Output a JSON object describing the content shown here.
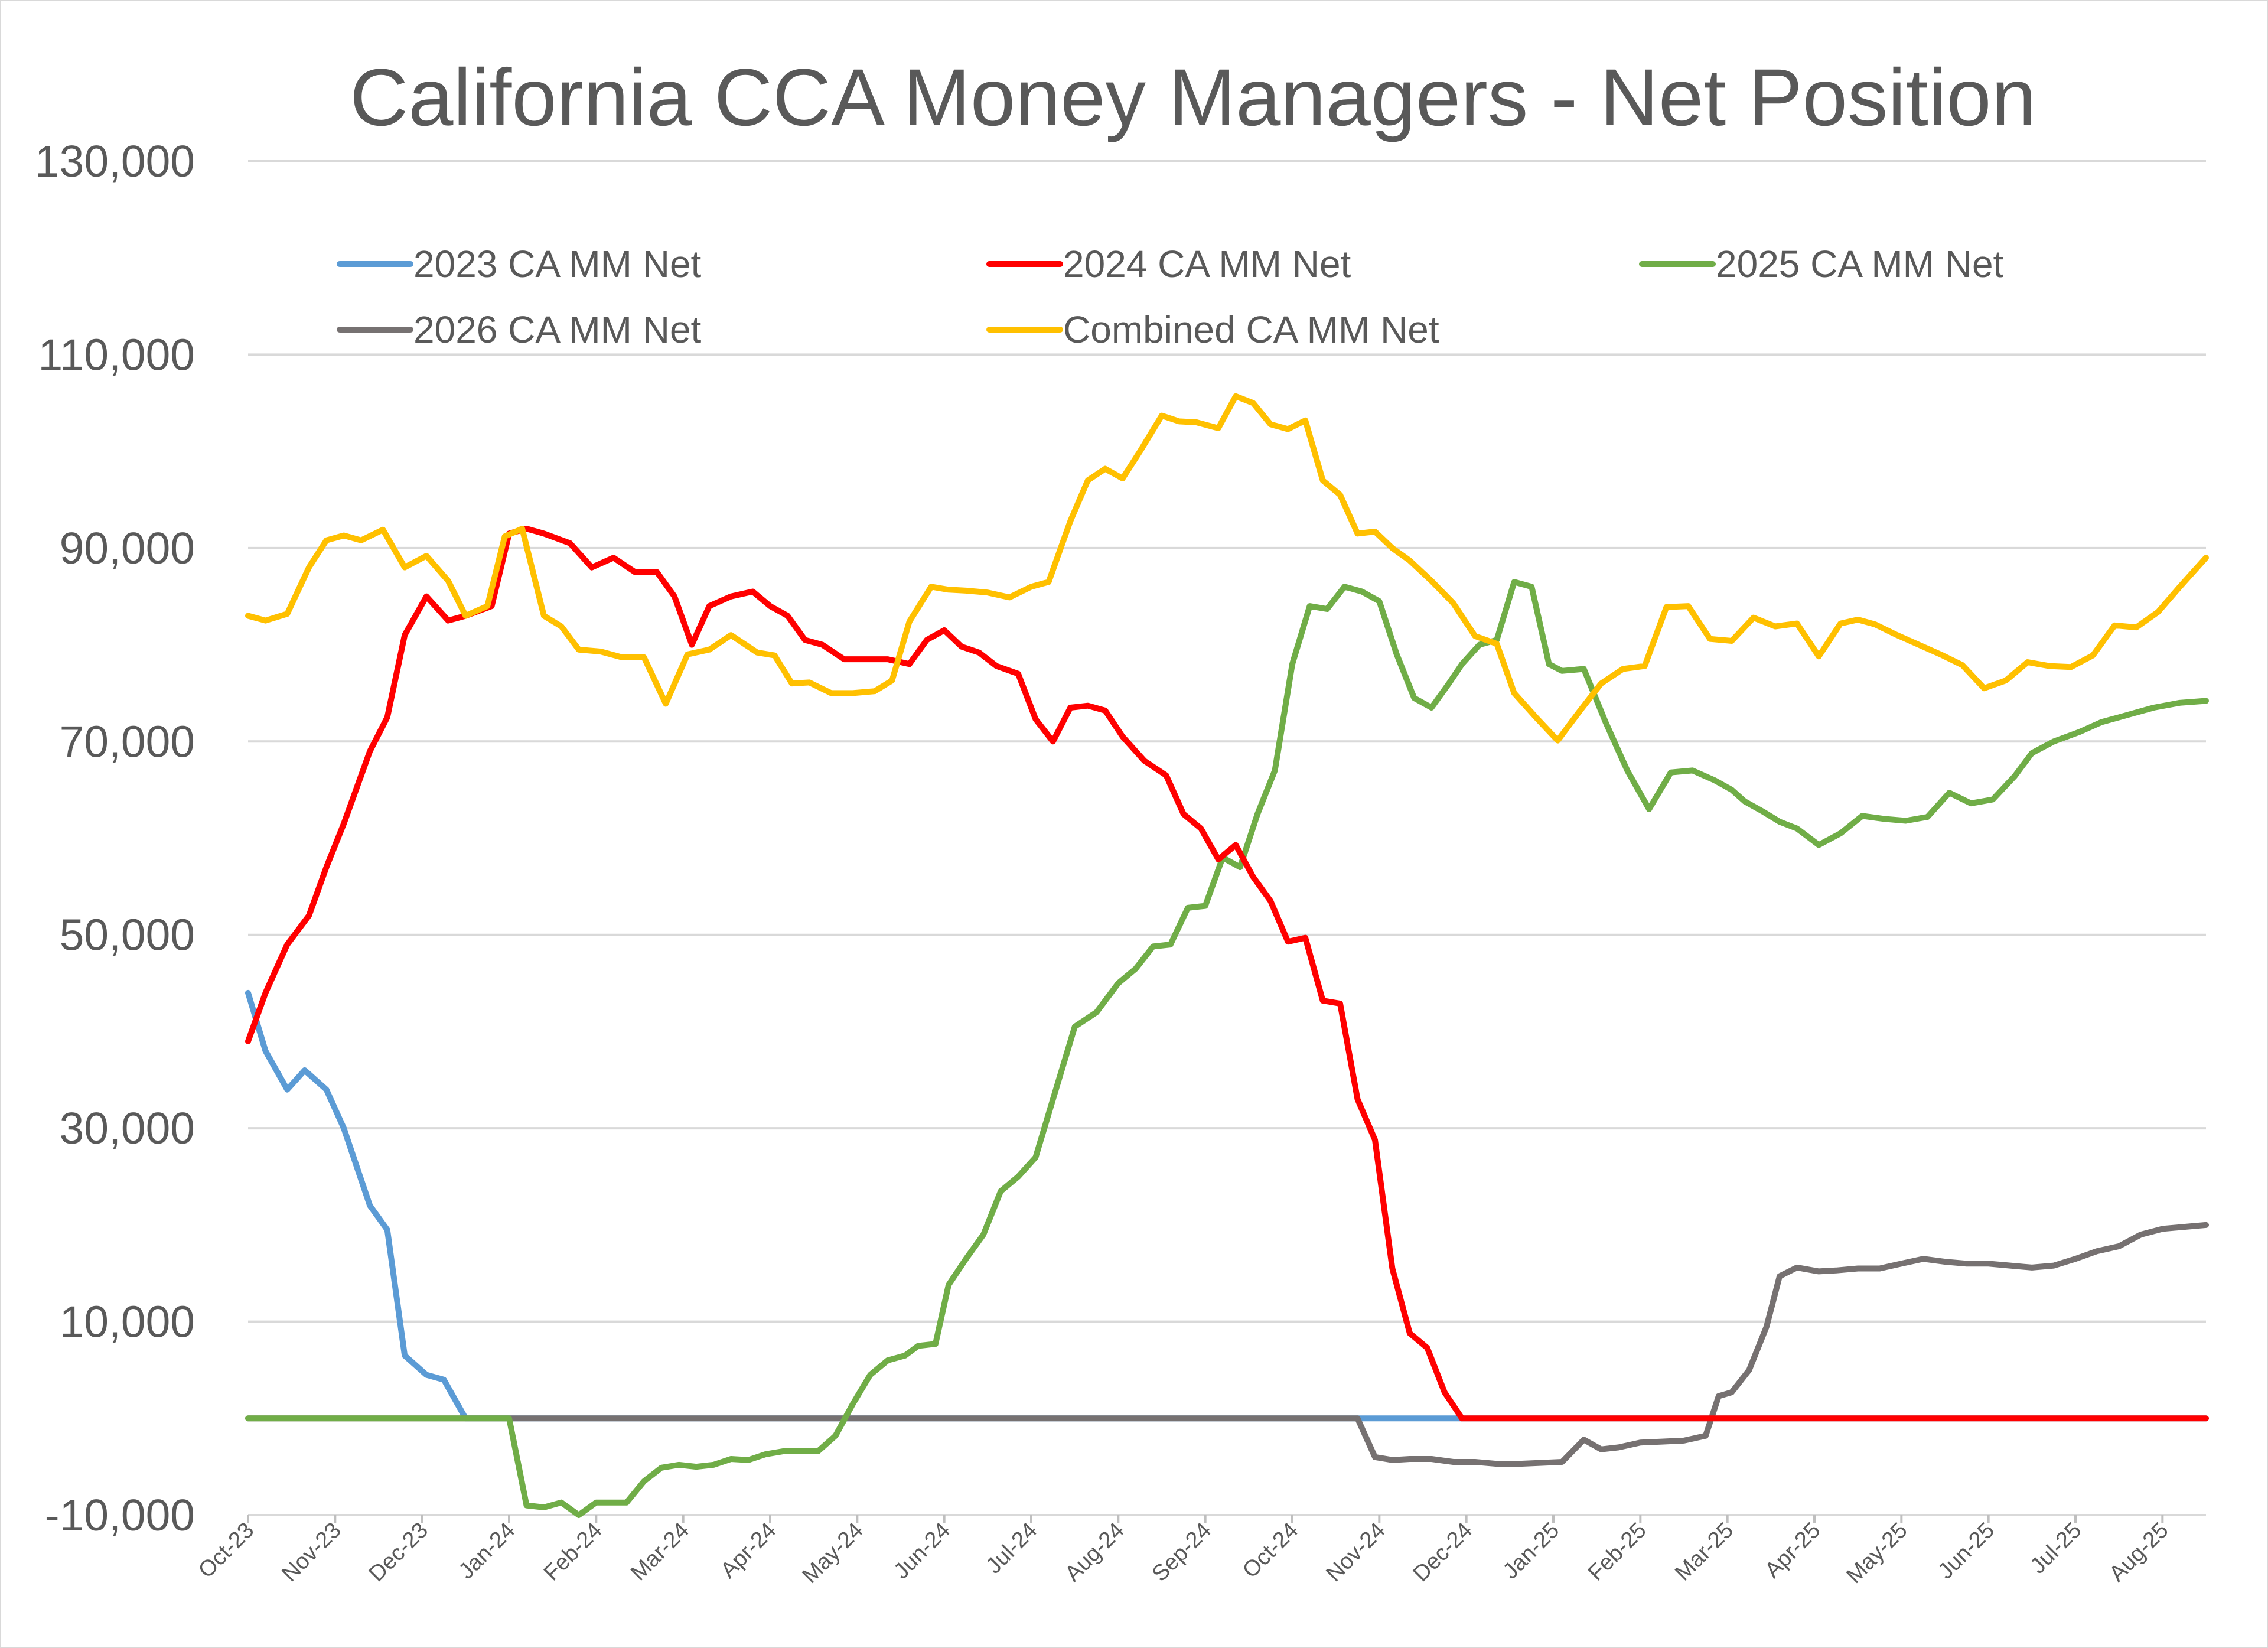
{
  "chart_data": {
    "type": "line",
    "title": "California CCA Money Managers - Net Position",
    "xlabel": "",
    "ylabel": "",
    "ylim": [
      -10000,
      130000
    ],
    "yticks": [
      -10000,
      10000,
      30000,
      50000,
      70000,
      90000,
      110000,
      130000
    ],
    "ytick_labels": [
      "-10,000",
      "10,000",
      "30,000",
      "50,000",
      "70,000",
      "90,000",
      "110,000",
      "130,000"
    ],
    "x_labels": [
      "Oct-23",
      "Nov-23",
      "Dec-23",
      "Jan-24",
      "Feb-24",
      "Mar-24",
      "Apr-24",
      "May-24",
      "Jun-24",
      "Jul-24",
      "Aug-24",
      "Sep-24",
      "Oct-24",
      "Nov-24",
      "Dec-24",
      "Jan-25",
      "Feb-25",
      "Mar-25",
      "Apr-25",
      "May-25",
      "Jun-25",
      "Jul-25",
      "Aug-25"
    ],
    "x_range": [
      0,
      22.5
    ],
    "grid": true,
    "legend_position": "top",
    "series": [
      {
        "name": "2023 CA MM Net",
        "color": "#5b9bd5",
        "x": [
          0,
          0.2,
          0.45,
          0.65,
          0.9,
          1.1,
          1.4,
          1.6,
          1.8,
          2.05,
          2.25,
          2.5,
          3,
          4,
          5,
          6,
          7,
          8,
          9,
          10,
          11,
          12,
          13,
          14,
          14.7,
          15,
          16,
          17,
          18,
          19,
          20,
          21,
          22,
          22.5
        ],
        "y": [
          44000,
          38000,
          34000,
          36000,
          34000,
          30000,
          22000,
          19500,
          6500,
          4500,
          4000,
          0,
          0,
          0,
          0,
          0,
          0,
          0,
          0,
          0,
          0,
          0,
          0,
          0,
          0,
          0,
          0,
          0,
          0,
          0,
          0,
          0,
          0,
          0
        ]
      },
      {
        "name": "2024 CA MM Net",
        "color": "#ff0000",
        "x": [
          0,
          0.2,
          0.45,
          0.7,
          0.9,
          1.1,
          1.4,
          1.6,
          1.8,
          2.05,
          2.3,
          2.5,
          2.8,
          3,
          3.2,
          3.4,
          3.7,
          3.95,
          4.2,
          4.45,
          4.7,
          4.9,
          5.1,
          5.3,
          5.55,
          5.8,
          6,
          6.2,
          6.4,
          6.6,
          6.85,
          7.1,
          7.35,
          7.6,
          7.8,
          8,
          8.2,
          8.4,
          8.6,
          8.85,
          9.05,
          9.25,
          9.45,
          9.65,
          9.85,
          10.05,
          10.3,
          10.55,
          10.75,
          10.95,
          11.15,
          11.35,
          11.55,
          11.75,
          11.95,
          12.15,
          12.35,
          12.55,
          12.75,
          12.95,
          13.15,
          13.35,
          13.55,
          13.75,
          13.95,
          14.15,
          14.35,
          14.55,
          14.75,
          14.85,
          15.2,
          16,
          17,
          18,
          19,
          20,
          21,
          22,
          22.5
        ],
        "y": [
          39000,
          44000,
          49000,
          52000,
          57000,
          61500,
          69000,
          72500,
          81000,
          85000,
          82500,
          83000,
          84000,
          91500,
          92000,
          91500,
          90500,
          88000,
          89000,
          87500,
          87500,
          85000,
          80000,
          84000,
          85000,
          85500,
          84000,
          83000,
          80500,
          80000,
          78500,
          78500,
          78500,
          78000,
          80500,
          81500,
          79800,
          79200,
          77800,
          77000,
          72300,
          70000,
          73500,
          73700,
          73200,
          70500,
          68000,
          66500,
          62500,
          61000,
          57800,
          59300,
          56000,
          53500,
          49300,
          49700,
          43200,
          42900,
          33000,
          28800,
          15500,
          8800,
          7300,
          2700,
          0,
          0,
          0,
          0,
          0,
          0,
          0,
          0,
          0,
          0,
          0,
          0,
          0,
          0,
          0
        ]
      },
      {
        "name": "2025 CA MM Net",
        "color": "#70ad47",
        "x": [
          0,
          1,
          2,
          3,
          3.2,
          3.4,
          3.6,
          3.8,
          4.0,
          4.15,
          4.35,
          4.55,
          4.75,
          4.95,
          5.15,
          5.35,
          5.55,
          5.75,
          5.95,
          6.15,
          6.35,
          6.55,
          6.75,
          6.95,
          7.15,
          7.35,
          7.55,
          7.7,
          7.9,
          8.05,
          8.25,
          8.45,
          8.65,
          8.85,
          9.05,
          9.25,
          9.5,
          9.75,
          10,
          10.2,
          10.4,
          10.6,
          10.8,
          11,
          11.2,
          11.4,
          11.6,
          11.8,
          12,
          12.2,
          12.4,
          12.6,
          12.8,
          13,
          13.2,
          13.4,
          13.6,
          13.8,
          13.95,
          14.15,
          14.35,
          14.55,
          14.75,
          14.95,
          15.1,
          15.35,
          15.6,
          15.85,
          16.1,
          16.35,
          16.6,
          16.85,
          17.05,
          17.2,
          17.4,
          17.6,
          17.8,
          18.05,
          18.3,
          18.55,
          18.8,
          19.05,
          19.3,
          19.55,
          19.8,
          20.05,
          20.3,
          20.5,
          20.75,
          21.05,
          21.3,
          21.5,
          21.7,
          21.9,
          22.2,
          22.5
        ],
        "y": [
          0,
          0,
          0,
          0,
          -9000,
          -9200,
          -8700,
          -10000,
          -8700,
          -8700,
          -8700,
          -6500,
          -5100,
          -4800,
          -5000,
          -4800,
          -4200,
          -4300,
          -3700,
          -3400,
          -3400,
          -3400,
          -1800,
          1500,
          4500,
          6000,
          6500,
          7500,
          7700,
          13800,
          16500,
          19000,
          23500,
          25000,
          27000,
          33000,
          40500,
          42000,
          45000,
          46500,
          48800,
          49000,
          52800,
          53000,
          58000,
          57000,
          62500,
          67000,
          78000,
          84000,
          83700,
          86000,
          85500,
          84500,
          79000,
          74500,
          73500,
          76000,
          78000,
          80000,
          80500,
          86500,
          86000,
          78000,
          77300,
          77500,
          72000,
          67000,
          63000,
          66800,
          67000,
          66000,
          65000,
          63800,
          62800,
          61700,
          61000,
          59300,
          60500,
          62300,
          62000,
          61800,
          62200,
          64700,
          63600,
          64000,
          66400,
          68800,
          70000,
          71000,
          72000,
          72500,
          73000,
          73500,
          74000,
          74200
        ],
        "x_visible_max": 22.5
      },
      {
        "name": "2026 CA MM Net",
        "color": "#767171",
        "x": [
          0,
          1,
          2,
          3,
          4,
          5,
          6,
          7,
          8,
          9,
          10,
          11,
          12,
          12.75,
          12.95,
          13.15,
          13.35,
          13.6,
          13.85,
          14.1,
          14.35,
          14.6,
          14.85,
          15.1,
          15.35,
          15.55,
          15.75,
          16,
          16.25,
          16.5,
          16.75,
          16.9,
          17.05,
          17.25,
          17.45,
          17.6,
          17.8,
          18.05,
          18.25,
          18.5,
          18.75,
          19,
          19.25,
          19.5,
          19.75,
          20,
          20.25,
          20.5,
          20.75,
          21,
          21.25,
          21.5,
          21.75,
          22,
          22.25,
          22.5
        ],
        "y": [
          0,
          0,
          0,
          0,
          0,
          0,
          0,
          0,
          0,
          0,
          0,
          0,
          0,
          0,
          -4000,
          -4300,
          -4200,
          -4200,
          -4500,
          -4500,
          -4700,
          -4700,
          -4600,
          -4500,
          -2200,
          -3200,
          -3000,
          -2500,
          -2400,
          -2300,
          -1800,
          2300,
          2700,
          5000,
          9500,
          14700,
          15600,
          15200,
          15300,
          15500,
          15500,
          16000,
          16500,
          16200,
          16000,
          16000,
          15800,
          15600,
          15800,
          16500,
          17300,
          17800,
          19000,
          19600,
          19800,
          20000
        ]
      },
      {
        "name": "Combined CA MM Net",
        "color": "#ffc000",
        "x": [
          0,
          0.2,
          0.45,
          0.7,
          0.9,
          1.1,
          1.3,
          1.55,
          1.8,
          2.05,
          2.3,
          2.5,
          2.75,
          2.95,
          3.15,
          3.4,
          3.6,
          3.8,
          4.05,
          4.3,
          4.55,
          4.8,
          5.05,
          5.3,
          5.55,
          5.85,
          6.05,
          6.25,
          6.45,
          6.7,
          6.95,
          7.2,
          7.4,
          7.6,
          7.85,
          8.05,
          8.25,
          8.5,
          8.75,
          9,
          9.2,
          9.45,
          9.65,
          9.85,
          10.05,
          10.25,
          10.5,
          10.7,
          10.9,
          11.15,
          11.35,
          11.55,
          11.75,
          11.95,
          12.15,
          12.35,
          12.55,
          12.75,
          12.95,
          13.15,
          13.35,
          13.6,
          13.85,
          14.1,
          14.35,
          14.55,
          14.8,
          15.05,
          15.3,
          15.55,
          15.8,
          16.05,
          16.3,
          16.55,
          16.8,
          17.05,
          17.3,
          17.55,
          17.8,
          18.05,
          18.3,
          18.5,
          18.7,
          18.95,
          19.2,
          19.45,
          19.7,
          19.95,
          20.2,
          20.45,
          20.7,
          20.95,
          21.2,
          21.45,
          21.7,
          21.95,
          22.2,
          22.5
        ],
        "y": [
          83000,
          82500,
          83200,
          88000,
          90800,
          91300,
          90800,
          91900,
          88000,
          89200,
          86600,
          83000,
          84000,
          91200,
          92000,
          83000,
          81900,
          79500,
          79300,
          78700,
          78700,
          73900,
          79000,
          79500,
          81000,
          79200,
          78900,
          76000,
          76100,
          75000,
          75000,
          75200,
          76300,
          82400,
          86000,
          85700,
          85600,
          85400,
          84900,
          86000,
          86500,
          92800,
          97000,
          98200,
          97200,
          100000,
          103700,
          103100,
          103000,
          102400,
          105700,
          105000,
          102800,
          102300,
          103200,
          97000,
          95500,
          91500,
          91700,
          90000,
          88700,
          86600,
          84300,
          80900,
          80100,
          75000,
          72500,
          70100,
          73100,
          76000,
          77500,
          77800,
          83900,
          84000,
          80600,
          80400,
          82800,
          81900,
          82200,
          78800,
          82200,
          82600,
          82100,
          81000,
          80000,
          79000,
          77900,
          75500,
          76300,
          78200,
          77800,
          77700,
          78900,
          82000,
          81800,
          83400,
          86000,
          89000
        ]
      }
    ]
  }
}
